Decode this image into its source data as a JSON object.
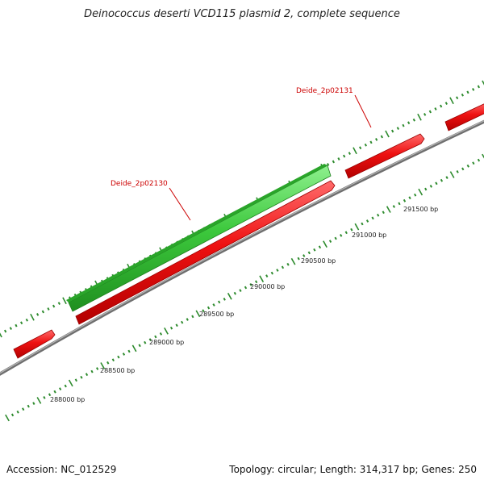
{
  "title": "Deinococcus deserti VCD115 plasmid 2, complete sequence",
  "footer": {
    "accession": "Accession: NC_012529",
    "summary": "Topology: circular; Length: 314,317 bp; Genes: 250"
  },
  "colors": {
    "backbone": "#7a7a7a",
    "tick": "#2e8b2e",
    "forward_gene": "#3cc83c",
    "reverse_gene": "#ee1111",
    "label_line": "#cc0000"
  },
  "ruler_labels": [
    "288000 bp",
    "288500 bp",
    "289000 bp",
    "289500 bp",
    "290000 bp",
    "290500 bp",
    "291000 bp",
    "291500 bp"
  ],
  "genes": [
    {
      "name": "Deide_2p02130",
      "strand": "forward",
      "labeled": true
    },
    {
      "name": "",
      "strand": "reverse",
      "labeled": false
    },
    {
      "name": "",
      "strand": "reverse",
      "labeled": false
    },
    {
      "name": "Deide_2p02131",
      "strand": "reverse",
      "labeled": true
    },
    {
      "name": "",
      "strand": "reverse",
      "labeled": false
    }
  ],
  "gene_labels": {
    "g1": "Deide_2p02130",
    "g2": "Deide_2p02131"
  }
}
